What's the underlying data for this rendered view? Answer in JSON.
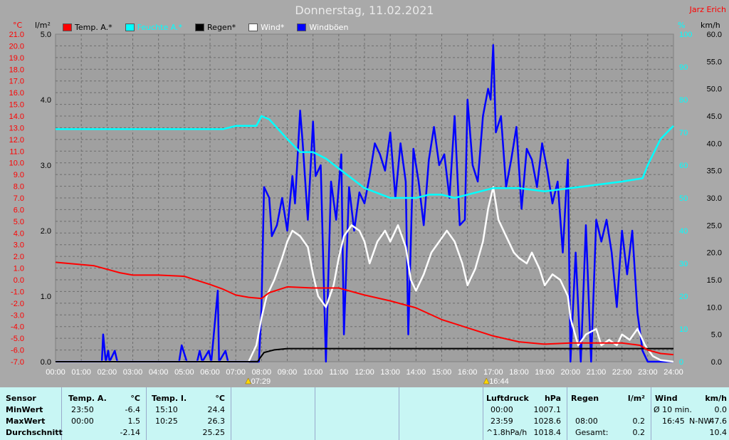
{
  "header": {
    "title": "Donnerstag, 11.02.2021",
    "author": "Jarz Erich",
    "unit_left_temp": "°C",
    "unit_left_rain": "l/m²",
    "unit_right_hum": "%",
    "unit_right_wind": "km/h"
  },
  "legend": [
    {
      "label": "Temp. A.*",
      "color": "#ff0000"
    },
    {
      "label": "Feuchte A.*",
      "color": "#00ffff"
    },
    {
      "label": "Regen*",
      "color": "#000000"
    },
    {
      "label": "Wind*",
      "color": "#ffffff"
    },
    {
      "label": "Windböen",
      "color": "#0000ff"
    }
  ],
  "markers": {
    "sunrise": "07:29",
    "sunset": "16:44"
  },
  "chart_data": {
    "type": "line",
    "x_labels": [
      "00:00",
      "01:00",
      "02:00",
      "03:00",
      "04:00",
      "05:00",
      "06:00",
      "07:00",
      "08:00",
      "09:00",
      "10:00",
      "11:00",
      "12:00",
      "13:00",
      "14:00",
      "15:00",
      "16:00",
      "17:00",
      "18:00",
      "19:00",
      "20:00",
      "21:00",
      "22:00",
      "23:00",
      "24:00"
    ],
    "axes": {
      "temp_ticks": [
        "21.0",
        "20.0",
        "19.0",
        "18.0",
        "17.0",
        "16.0",
        "15.0",
        "14.0",
        "13.0",
        "12.0",
        "11.0",
        "10.0",
        "9.0",
        "8.0",
        "7.0",
        "6.0",
        "5.0",
        "4.0",
        "3.0",
        "2.0",
        "1.0",
        "0.0",
        "-1.0",
        "-2.0",
        "-3.0",
        "-4.0",
        "-5.0",
        "-6.0",
        "-7.0"
      ],
      "rain_ticks": [
        "5.0",
        "4.0",
        "3.0",
        "2.0",
        "1.0",
        "0.0"
      ],
      "hum_ticks": [
        "100",
        "90",
        "80",
        "70",
        "60",
        "50",
        "40",
        "30",
        "20",
        "10",
        "0"
      ],
      "wind_ticks": [
        "60.0",
        "55.0",
        "50.0",
        "45.0",
        "40.0",
        "35.0",
        "30.0",
        "25.0",
        "20.0",
        "15.0",
        "10.0",
        "5.0",
        "0.0"
      ],
      "temp_range": [
        -7,
        21
      ],
      "rain_range": [
        0,
        5
      ],
      "hum_range": [
        0,
        100
      ],
      "wind_range": [
        0,
        60
      ]
    },
    "series": [
      {
        "name": "Temp. A.*",
        "color": "#ff0000",
        "axis": "temp",
        "points": [
          [
            0,
            1.5
          ],
          [
            1,
            1.3
          ],
          [
            1.5,
            1.2
          ],
          [
            2,
            0.9
          ],
          [
            2.5,
            0.6
          ],
          [
            3,
            0.4
          ],
          [
            4,
            0.4
          ],
          [
            5,
            0.3
          ],
          [
            6,
            -0.4
          ],
          [
            6.5,
            -0.8
          ],
          [
            7,
            -1.3
          ],
          [
            7.5,
            -1.5
          ],
          [
            8,
            -1.6
          ],
          [
            8.3,
            -1.1
          ],
          [
            9,
            -0.6
          ],
          [
            10,
            -0.7
          ],
          [
            11,
            -0.7
          ],
          [
            12,
            -1.3
          ],
          [
            13,
            -1.8
          ],
          [
            14,
            -2.4
          ],
          [
            15,
            -3.4
          ],
          [
            16,
            -4.1
          ],
          [
            17,
            -4.8
          ],
          [
            18,
            -5.3
          ],
          [
            19,
            -5.5
          ],
          [
            20,
            -5.4
          ],
          [
            21,
            -5.4
          ],
          [
            22,
            -5.4
          ],
          [
            22.7,
            -5.6
          ],
          [
            23,
            -6.0
          ],
          [
            23.5,
            -6.3
          ],
          [
            24,
            -6.4
          ]
        ]
      },
      {
        "name": "Feuchte A.*",
        "color": "#00ffff",
        "axis": "hum",
        "points": [
          [
            0,
            71
          ],
          [
            1,
            71
          ],
          [
            2,
            71
          ],
          [
            3,
            71
          ],
          [
            4,
            71
          ],
          [
            5,
            71
          ],
          [
            6,
            71
          ],
          [
            6.5,
            71
          ],
          [
            7,
            72
          ],
          [
            7.8,
            72
          ],
          [
            8,
            75
          ],
          [
            8.3,
            74
          ],
          [
            9,
            68
          ],
          [
            9.5,
            64
          ],
          [
            10,
            64
          ],
          [
            10.5,
            62
          ],
          [
            11,
            59
          ],
          [
            11.5,
            56
          ],
          [
            12,
            53
          ],
          [
            13,
            50
          ],
          [
            14,
            50
          ],
          [
            14.5,
            51
          ],
          [
            15,
            51
          ],
          [
            15.5,
            50
          ],
          [
            16,
            51
          ],
          [
            17,
            53
          ],
          [
            18,
            53
          ],
          [
            19,
            52
          ],
          [
            20,
            53
          ],
          [
            21,
            54
          ],
          [
            22,
            55
          ],
          [
            22.8,
            56
          ],
          [
            23,
            60
          ],
          [
            23.5,
            68
          ],
          [
            24,
            72
          ]
        ]
      },
      {
        "name": "Regen*",
        "color": "#000000",
        "axis": "rain",
        "points": [
          [
            0,
            0
          ],
          [
            7.85,
            0
          ],
          [
            7.95,
            0.06
          ],
          [
            8.1,
            0.14
          ],
          [
            8.5,
            0.18
          ],
          [
            9,
            0.2
          ],
          [
            24,
            0.2
          ]
        ]
      },
      {
        "name": "Wind*",
        "color": "#ffffff",
        "axis": "wind",
        "points": [
          [
            0,
            0
          ],
          [
            7.5,
            0
          ],
          [
            7.8,
            3
          ],
          [
            8,
            8
          ],
          [
            8.2,
            12
          ],
          [
            8.5,
            15
          ],
          [
            8.8,
            19
          ],
          [
            9,
            22
          ],
          [
            9.2,
            24
          ],
          [
            9.5,
            23
          ],
          [
            9.8,
            21
          ],
          [
            10,
            16
          ],
          [
            10.2,
            12
          ],
          [
            10.5,
            10
          ],
          [
            10.8,
            14
          ],
          [
            11,
            19
          ],
          [
            11.2,
            23
          ],
          [
            11.5,
            25
          ],
          [
            11.8,
            24
          ],
          [
            12,
            22
          ],
          [
            12.2,
            18
          ],
          [
            12.5,
            22
          ],
          [
            12.8,
            24
          ],
          [
            13,
            22
          ],
          [
            13.3,
            25
          ],
          [
            13.6,
            21
          ],
          [
            13.8,
            15
          ],
          [
            14,
            13
          ],
          [
            14.3,
            16
          ],
          [
            14.6,
            20
          ],
          [
            14.9,
            22
          ],
          [
            15.2,
            24
          ],
          [
            15.5,
            22
          ],
          [
            15.8,
            18
          ],
          [
            16,
            14
          ],
          [
            16.3,
            17
          ],
          [
            16.6,
            22
          ],
          [
            16.8,
            28
          ],
          [
            17,
            32
          ],
          [
            17.2,
            26
          ],
          [
            17.5,
            23
          ],
          [
            17.8,
            20
          ],
          [
            18,
            19
          ],
          [
            18.3,
            18
          ],
          [
            18.5,
            20
          ],
          [
            18.8,
            17
          ],
          [
            19,
            14
          ],
          [
            19.3,
            16
          ],
          [
            19.6,
            15
          ],
          [
            19.9,
            12
          ],
          [
            20,
            8
          ],
          [
            20.3,
            3
          ],
          [
            20.6,
            5
          ],
          [
            21,
            6
          ],
          [
            21.2,
            3
          ],
          [
            21.5,
            4
          ],
          [
            21.8,
            3
          ],
          [
            22,
            5
          ],
          [
            22.3,
            4
          ],
          [
            22.6,
            6
          ],
          [
            22.9,
            3
          ],
          [
            23.2,
            1
          ],
          [
            23.5,
            0.3
          ],
          [
            24,
            0
          ]
        ]
      },
      {
        "name": "Windböen",
        "color": "#0000ff",
        "axis": "wind",
        "points": [
          [
            0,
            0
          ],
          [
            1.8,
            0
          ],
          [
            1.85,
            5
          ],
          [
            1.95,
            0
          ],
          [
            2.05,
            2
          ],
          [
            2.1,
            0
          ],
          [
            2.3,
            2
          ],
          [
            2.4,
            0
          ],
          [
            4.8,
            0
          ],
          [
            4.9,
            3
          ],
          [
            5.1,
            0
          ],
          [
            5.5,
            0
          ],
          [
            5.6,
            2
          ],
          [
            5.7,
            0
          ],
          [
            5.95,
            2
          ],
          [
            6.05,
            0
          ],
          [
            6.3,
            13
          ],
          [
            6.35,
            0
          ],
          [
            6.6,
            2
          ],
          [
            6.7,
            0
          ],
          [
            7.9,
            0
          ],
          [
            8,
            10
          ],
          [
            8.1,
            32
          ],
          [
            8.3,
            30
          ],
          [
            8.4,
            23
          ],
          [
            8.6,
            25
          ],
          [
            8.8,
            30
          ],
          [
            9,
            24
          ],
          [
            9.2,
            34
          ],
          [
            9.3,
            29
          ],
          [
            9.5,
            46
          ],
          [
            9.6,
            40
          ],
          [
            9.8,
            26
          ],
          [
            10,
            44
          ],
          [
            10.1,
            34
          ],
          [
            10.3,
            36
          ],
          [
            10.5,
            0
          ],
          [
            10.7,
            33
          ],
          [
            10.9,
            26
          ],
          [
            11.1,
            38
          ],
          [
            11.2,
            5
          ],
          [
            11.4,
            32
          ],
          [
            11.6,
            24
          ],
          [
            11.8,
            31
          ],
          [
            12,
            29
          ],
          [
            12.2,
            34
          ],
          [
            12.4,
            40
          ],
          [
            12.6,
            38
          ],
          [
            12.8,
            35
          ],
          [
            13,
            42
          ],
          [
            13.2,
            30
          ],
          [
            13.4,
            40
          ],
          [
            13.6,
            33
          ],
          [
            13.7,
            5
          ],
          [
            13.9,
            39
          ],
          [
            14.1,
            33
          ],
          [
            14.3,
            25
          ],
          [
            14.5,
            37
          ],
          [
            14.7,
            43
          ],
          [
            14.9,
            36
          ],
          [
            15.1,
            38
          ],
          [
            15.3,
            30
          ],
          [
            15.5,
            45
          ],
          [
            15.7,
            25
          ],
          [
            15.9,
            26
          ],
          [
            16,
            48
          ],
          [
            16.2,
            36
          ],
          [
            16.4,
            33
          ],
          [
            16.6,
            45
          ],
          [
            16.8,
            50
          ],
          [
            16.9,
            48
          ],
          [
            17,
            58
          ],
          [
            17.1,
            42
          ],
          [
            17.3,
            45
          ],
          [
            17.5,
            32
          ],
          [
            17.7,
            37
          ],
          [
            17.9,
            43
          ],
          [
            18.1,
            28
          ],
          [
            18.3,
            39
          ],
          [
            18.5,
            37
          ],
          [
            18.7,
            32
          ],
          [
            18.9,
            40
          ],
          [
            19.1,
            35
          ],
          [
            19.3,
            29
          ],
          [
            19.5,
            33
          ],
          [
            19.7,
            20
          ],
          [
            19.9,
            37
          ],
          [
            20,
            0
          ],
          [
            20.2,
            20
          ],
          [
            20.4,
            0
          ],
          [
            20.6,
            25
          ],
          [
            20.8,
            0
          ],
          [
            21,
            26
          ],
          [
            21.2,
            22
          ],
          [
            21.4,
            26
          ],
          [
            21.6,
            20
          ],
          [
            21.8,
            10
          ],
          [
            22,
            24
          ],
          [
            22.2,
            16
          ],
          [
            22.4,
            24
          ],
          [
            22.6,
            9
          ],
          [
            22.8,
            2
          ],
          [
            23,
            0
          ],
          [
            24,
            0
          ]
        ]
      }
    ]
  },
  "table": {
    "sensor": {
      "h": "Sensor",
      "min": "MinWert",
      "max": "MaxWert",
      "avg": "Durchschnitt"
    },
    "temp_a": {
      "h": "Temp. A.",
      "u": "°C",
      "min_t": "23:50",
      "min_v": "-6.4",
      "max_t": "00:00",
      "max_v": "1.5",
      "avg_v": "-2.14"
    },
    "temp_i": {
      "h": "Temp. I.",
      "u": "°C",
      "min_t": "15:10",
      "min_v": "24.4",
      "max_t": "10:25",
      "max_v": "26.3",
      "avg_v": "25.25"
    },
    "pressure": {
      "h": "Luftdruck",
      "u": "hPa",
      "min_t": "00:00",
      "min_v": "1007.1",
      "max_t": "23:59",
      "max_v": "1028.6",
      "avg_t": "^1.8hPa/h",
      "avg_v": "1018.4"
    },
    "rain": {
      "h": "Regen",
      "u": "l/m²",
      "max_t": "08:00",
      "max_v": "0.2",
      "avg_t": "Gesamt:",
      "avg_v": "0.2"
    },
    "wind": {
      "h": "Wind",
      "u": "km/h",
      "min_t": "Ø 10 min.",
      "min_v": "0.0",
      "max_t": "16:45",
      "max_dir": "N-NW",
      "max_v": "47.6",
      "avg_v": "10.4"
    }
  }
}
